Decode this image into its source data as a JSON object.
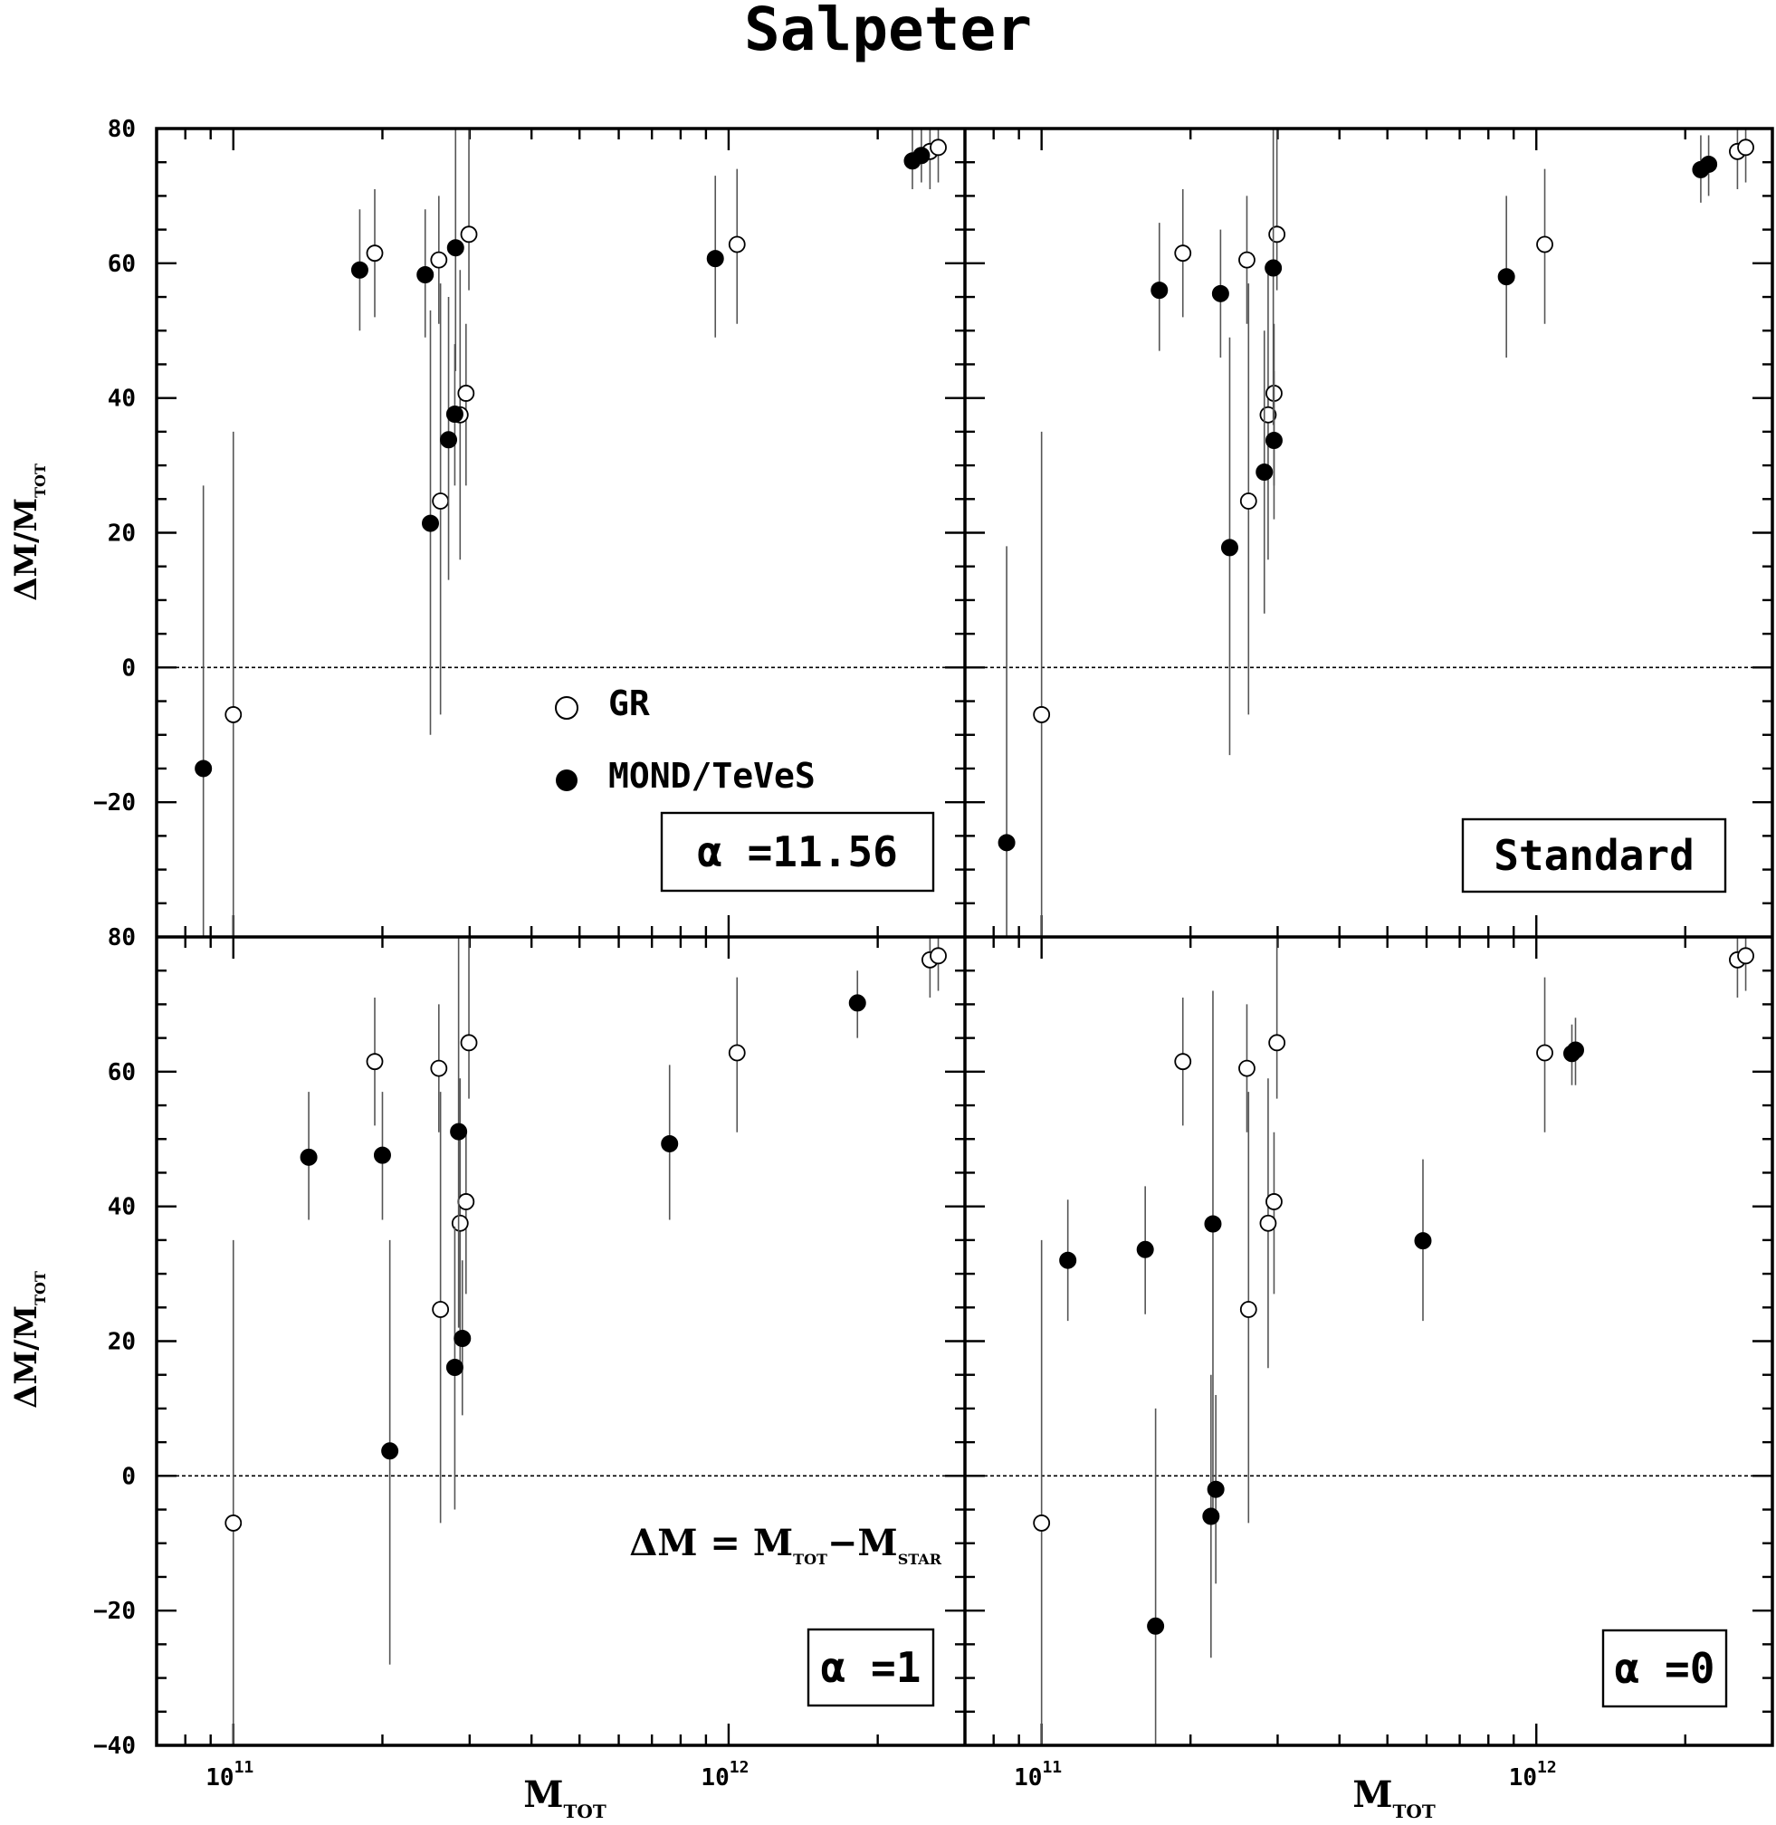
{
  "figure": {
    "title": "Salpeter",
    "ylabel": {
      "main": "ΔM/M",
      "sub": "TOT"
    },
    "xlabel": {
      "main": "M",
      "sub": "TOT"
    },
    "xticks": [
      {
        "base": "10",
        "exp": "11"
      },
      {
        "base": "10",
        "exp": "12"
      }
    ],
    "legend": {
      "open": "GR",
      "filled": "MOND/TeVeS"
    },
    "formula": {
      "lhs": "ΔM",
      "eq": "=",
      "t1": "M",
      "t1sub": "TOT",
      "minus": "−",
      "t2": "M",
      "t2sub": "STAR"
    },
    "yticklabels_top": [
      "80",
      "60",
      "40",
      "20",
      "0",
      "−20",
      "80"
    ],
    "yticklabels_bottom": [
      "60",
      "40",
      "20",
      "0",
      "−20",
      "−40"
    ]
  },
  "chart_data": [
    {
      "type": "scatter",
      "panel": "top-left",
      "box_label": "α =11.56",
      "xscale": "log",
      "xlim": [
        70000000000,
        3000000000000
      ],
      "ylim": [
        -40,
        80
      ],
      "xlabel": "",
      "ylabel": "ΔM/M_TOT",
      "zero_line": true,
      "series": [
        {
          "name": "GR",
          "marker": "open",
          "points": [
            [
              100000000000.0,
              -7,
              -42,
              35
            ],
            [
              193000000000.0,
              61.5,
              52,
              71
            ],
            [
              260000000000.0,
              60.5,
              51,
              70
            ],
            [
              262000000000.0,
              24.7,
              -7,
              57
            ],
            [
              287000000000.0,
              37.5,
              16,
              59
            ],
            [
              295000000000.0,
              40.7,
              27,
              51
            ],
            [
              299000000000.0,
              64.3,
              56,
              80
            ],
            [
              1040000000000.0,
              62.8,
              51,
              74
            ],
            [
              2550000000000.0,
              76.6,
              71,
              80
            ],
            [
              2650000000000.0,
              77.2,
              72,
              80
            ]
          ]
        },
        {
          "name": "MOND/TeVeS",
          "marker": "filled",
          "points": [
            [
              87000000000.0,
              -15,
              -40,
              27
            ],
            [
              180000000000.0,
              59,
              50,
              68
            ],
            [
              244000000000.0,
              58.3,
              49,
              68
            ],
            [
              250000000000.0,
              21.4,
              -10,
              53
            ],
            [
              272000000000.0,
              33.8,
              13,
              55
            ],
            [
              280000000000.0,
              37.6,
              27,
              48
            ],
            [
              281000000000.0,
              62.3,
              44,
              80
            ],
            [
              940000000000.0,
              60.7,
              49,
              73
            ],
            [
              2350000000000.0,
              75.2,
              71,
              80
            ],
            [
              2450000000000.0,
              76,
              72,
              80
            ]
          ]
        }
      ]
    },
    {
      "type": "scatter",
      "panel": "top-right",
      "box_label": "Standard",
      "xscale": "log",
      "xlim": [
        70000000000,
        3000000000000
      ],
      "ylim": [
        -40,
        80
      ],
      "zero_line": true,
      "series": [
        {
          "name": "GR",
          "marker": "open",
          "points": [
            [
              100000000000.0,
              -7,
              -42,
              35
            ],
            [
              193000000000.0,
              61.5,
              52,
              71
            ],
            [
              260000000000.0,
              60.5,
              51,
              70
            ],
            [
              262000000000.0,
              24.7,
              -7,
              57
            ],
            [
              287000000000.0,
              37.5,
              16,
              59
            ],
            [
              295000000000.0,
              40.7,
              27,
              51
            ],
            [
              299000000000.0,
              64.3,
              56,
              80
            ],
            [
              1040000000000.0,
              62.8,
              51,
              74
            ],
            [
              2550000000000.0,
              76.6,
              71,
              80
            ],
            [
              2650000000000.0,
              77.2,
              72,
              80
            ]
          ]
        },
        {
          "name": "MOND/TeVeS",
          "marker": "filled",
          "points": [
            [
              85000000000.0,
              -26,
              -40,
              18
            ],
            [
              173000000000.0,
              56,
              47,
              66
            ],
            [
              230000000000.0,
              55.5,
              46,
              65
            ],
            [
              240000000000.0,
              17.8,
              -13,
              49
            ],
            [
              282000000000.0,
              29,
              8,
              50
            ],
            [
              294000000000.0,
              59.3,
              36,
              80
            ],
            [
              295000000000.0,
              33.7,
              22,
              44
            ],
            [
              870000000000.0,
              58,
              46,
              70
            ],
            [
              2150000000000.0,
              73.9,
              69,
              79
            ],
            [
              2230000000000.0,
              74.7,
              70,
              79
            ]
          ]
        }
      ]
    },
    {
      "type": "scatter",
      "panel": "bottom-left",
      "box_label": "α =1",
      "xscale": "log",
      "xlim": [
        70000000000,
        3000000000000
      ],
      "ylim": [
        -40,
        80
      ],
      "zero_line": true,
      "series": [
        {
          "name": "GR",
          "marker": "open",
          "points": [
            [
              100000000000.0,
              -7,
              -42,
              35
            ],
            [
              193000000000.0,
              61.5,
              52,
              71
            ],
            [
              260000000000.0,
              60.5,
              51,
              70
            ],
            [
              262000000000.0,
              24.7,
              -7,
              57
            ],
            [
              287000000000.0,
              37.5,
              16,
              59
            ],
            [
              295000000000.0,
              40.7,
              27,
              51
            ],
            [
              299000000000.0,
              64.3,
              56,
              80
            ],
            [
              1040000000000.0,
              62.8,
              51,
              74
            ],
            [
              2550000000000.0,
              76.6,
              71,
              80
            ],
            [
              2650000000000.0,
              77.2,
              72,
              80
            ]
          ]
        },
        {
          "name": "MOND/TeVeS",
          "marker": "filled",
          "points": [
            [
              142000000000.0,
              47.3,
              38,
              57
            ],
            [
              200000000000.0,
              47.6,
              38,
              57
            ],
            [
              207000000000.0,
              3.7,
              -28,
              35
            ],
            [
              280000000000.0,
              16.1,
              -5,
              37
            ],
            [
              285000000000.0,
              51.1,
              22,
              80
            ],
            [
              290000000000.0,
              20.4,
              9,
              32
            ],
            [
              760000000000.0,
              49.3,
              38,
              61
            ],
            [
              1820000000000.0,
              70.2,
              65,
              75
            ]
          ]
        }
      ]
    },
    {
      "type": "scatter",
      "panel": "bottom-right",
      "box_label": "α =0",
      "xscale": "log",
      "xlim": [
        70000000000,
        3000000000000
      ],
      "ylim": [
        -40,
        80
      ],
      "zero_line": true,
      "series": [
        {
          "name": "GR",
          "marker": "open",
          "points": [
            [
              100000000000.0,
              -7,
              -42,
              35
            ],
            [
              193000000000.0,
              61.5,
              52,
              71
            ],
            [
              260000000000.0,
              60.5,
              51,
              70
            ],
            [
              262000000000.0,
              24.7,
              -7,
              57
            ],
            [
              287000000000.0,
              37.5,
              16,
              59
            ],
            [
              295000000000.0,
              40.7,
              27,
              51
            ],
            [
              299000000000.0,
              64.3,
              56,
              80
            ],
            [
              1040000000000.0,
              62.8,
              51,
              74
            ],
            [
              2550000000000.0,
              76.6,
              71,
              80
            ],
            [
              2650000000000.0,
              77.2,
              72,
              80
            ]
          ]
        },
        {
          "name": "MOND/TeVeS",
          "marker": "filled",
          "points": [
            [
              113000000000.0,
              32,
              23,
              41
            ],
            [
              162000000000.0,
              33.6,
              24,
              43
            ],
            [
              170000000000.0,
              -22.3,
              -48,
              10
            ],
            [
              220000000000.0,
              -6,
              -27,
              15
            ],
            [
              222000000000.0,
              37.4,
              -5,
              72
            ],
            [
              225000000000.0,
              -2,
              -16,
              12
            ],
            [
              590000000000.0,
              34.9,
              23,
              47
            ],
            [
              1180000000000.0,
              62.7,
              58,
              67
            ],
            [
              1200000000000.0,
              63.2,
              58,
              68
            ]
          ]
        }
      ]
    }
  ]
}
